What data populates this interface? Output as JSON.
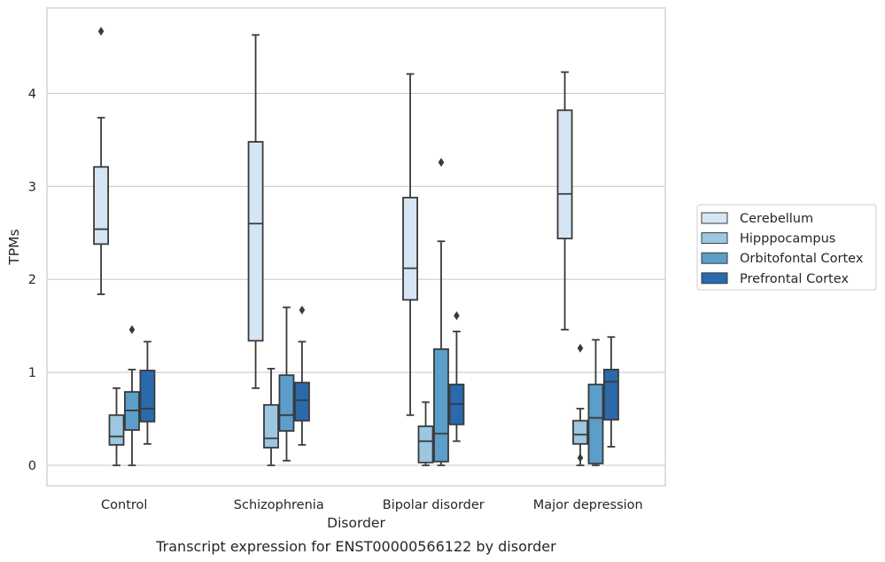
{
  "chart_data": {
    "type": "box",
    "caption": "Transcript expression for ENST00000566122 by disorder",
    "xlabel": "Disorder",
    "ylabel": "TPMs",
    "ylim": [
      -0.22,
      4.92
    ],
    "yticks": [
      0,
      1,
      2,
      3,
      4
    ],
    "grid": "horizontal",
    "legend_position": "right",
    "categories": [
      "Control",
      "Schizophrenia",
      "Bipolar disorder",
      "Major depression"
    ],
    "series": [
      {
        "name": "Cerebellum",
        "color": "#d6e5f4",
        "boxes": [
          {
            "whislo": 1.84,
            "q1": 2.38,
            "med": 2.54,
            "q3": 3.21,
            "whishi": 3.74,
            "fliers": [
              4.67
            ]
          },
          {
            "whislo": 0.83,
            "q1": 1.34,
            "med": 2.6,
            "q3": 3.48,
            "whishi": 4.63,
            "fliers": []
          },
          {
            "whislo": 0.54,
            "q1": 1.78,
            "med": 2.12,
            "q3": 2.88,
            "whishi": 4.21,
            "fliers": []
          },
          {
            "whislo": 1.46,
            "q1": 2.44,
            "med": 2.92,
            "q3": 3.82,
            "whishi": 4.23,
            "fliers": []
          }
        ]
      },
      {
        "name": "Hipppocampus",
        "color": "#9dc7e0",
        "boxes": [
          {
            "whislo": 0.0,
            "q1": 0.22,
            "med": 0.31,
            "q3": 0.54,
            "whishi": 0.83,
            "fliers": []
          },
          {
            "whislo": 0.0,
            "q1": 0.19,
            "med": 0.29,
            "q3": 0.65,
            "whishi": 1.04,
            "fliers": []
          },
          {
            "whislo": 0.0,
            "q1": 0.03,
            "med": 0.26,
            "q3": 0.42,
            "whishi": 0.68,
            "fliers": []
          },
          {
            "whislo": 0.0,
            "q1": 0.23,
            "med": 0.33,
            "q3": 0.48,
            "whishi": 0.61,
            "fliers": [
              0.08,
              1.26
            ]
          }
        ]
      },
      {
        "name": "Orbitofontal Cortex",
        "color": "#5b9ec9",
        "boxes": [
          {
            "whislo": 0.0,
            "q1": 0.38,
            "med": 0.59,
            "q3": 0.79,
            "whishi": 1.03,
            "fliers": [
              1.46
            ]
          },
          {
            "whislo": 0.05,
            "q1": 0.37,
            "med": 0.54,
            "q3": 0.97,
            "whishi": 1.7,
            "fliers": []
          },
          {
            "whislo": 0.0,
            "q1": 0.04,
            "med": 0.34,
            "q3": 1.25,
            "whishi": 2.41,
            "fliers": [
              3.26
            ]
          },
          {
            "whislo": 0.0,
            "q1": 0.02,
            "med": 0.51,
            "q3": 0.87,
            "whishi": 1.35,
            "fliers": []
          }
        ]
      },
      {
        "name": "Prefrontal Cortex",
        "color": "#2a69ac",
        "boxes": [
          {
            "whislo": 0.23,
            "q1": 0.47,
            "med": 0.61,
            "q3": 1.02,
            "whishi": 1.33,
            "fliers": []
          },
          {
            "whislo": 0.22,
            "q1": 0.48,
            "med": 0.7,
            "q3": 0.89,
            "whishi": 1.33,
            "fliers": [
              1.67
            ]
          },
          {
            "whislo": 0.26,
            "q1": 0.44,
            "med": 0.66,
            "q3": 0.87,
            "whishi": 1.44,
            "fliers": [
              1.61
            ]
          },
          {
            "whislo": 0.2,
            "q1": 0.49,
            "med": 0.9,
            "q3": 1.03,
            "whishi": 1.38,
            "fliers": []
          }
        ]
      }
    ]
  }
}
